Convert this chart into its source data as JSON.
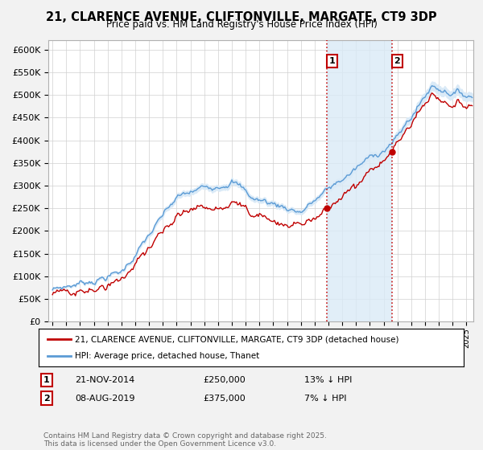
{
  "title": "21, CLARENCE AVENUE, CLIFTONVILLE, MARGATE, CT9 3DP",
  "subtitle": "Price paid vs. HM Land Registry's House Price Index (HPI)",
  "yticks": [
    0,
    50000,
    100000,
    150000,
    200000,
    250000,
    300000,
    350000,
    400000,
    450000,
    500000,
    550000,
    600000
  ],
  "ylim": [
    0,
    620000
  ],
  "xlim_start": 1994.7,
  "xlim_end": 2025.5,
  "sale1_date": 2014.896,
  "sale1_price": 250000,
  "sale1_label": "21-NOV-2014",
  "sale1_pct": "13% ↓ HPI",
  "sale2_date": 2019.597,
  "sale2_price": 375000,
  "sale2_label": "08-AUG-2019",
  "sale2_pct": "7% ↓ HPI",
  "hpi_color": "#5b9bd5",
  "hpi_fill_color": "#daeaf7",
  "sale_color": "#c00000",
  "annotation_line_color": "#c00000",
  "legend_label_sale": "21, CLARENCE AVENUE, CLIFTONVILLE, MARGATE, CT9 3DP (detached house)",
  "legend_label_hpi": "HPI: Average price, detached house, Thanet",
  "footnote": "Contains HM Land Registry data © Crown copyright and database right 2025.\nThis data is licensed under the Open Government Licence v3.0.",
  "background_color": "#f2f2f2",
  "plot_bg_color": "#ffffff"
}
